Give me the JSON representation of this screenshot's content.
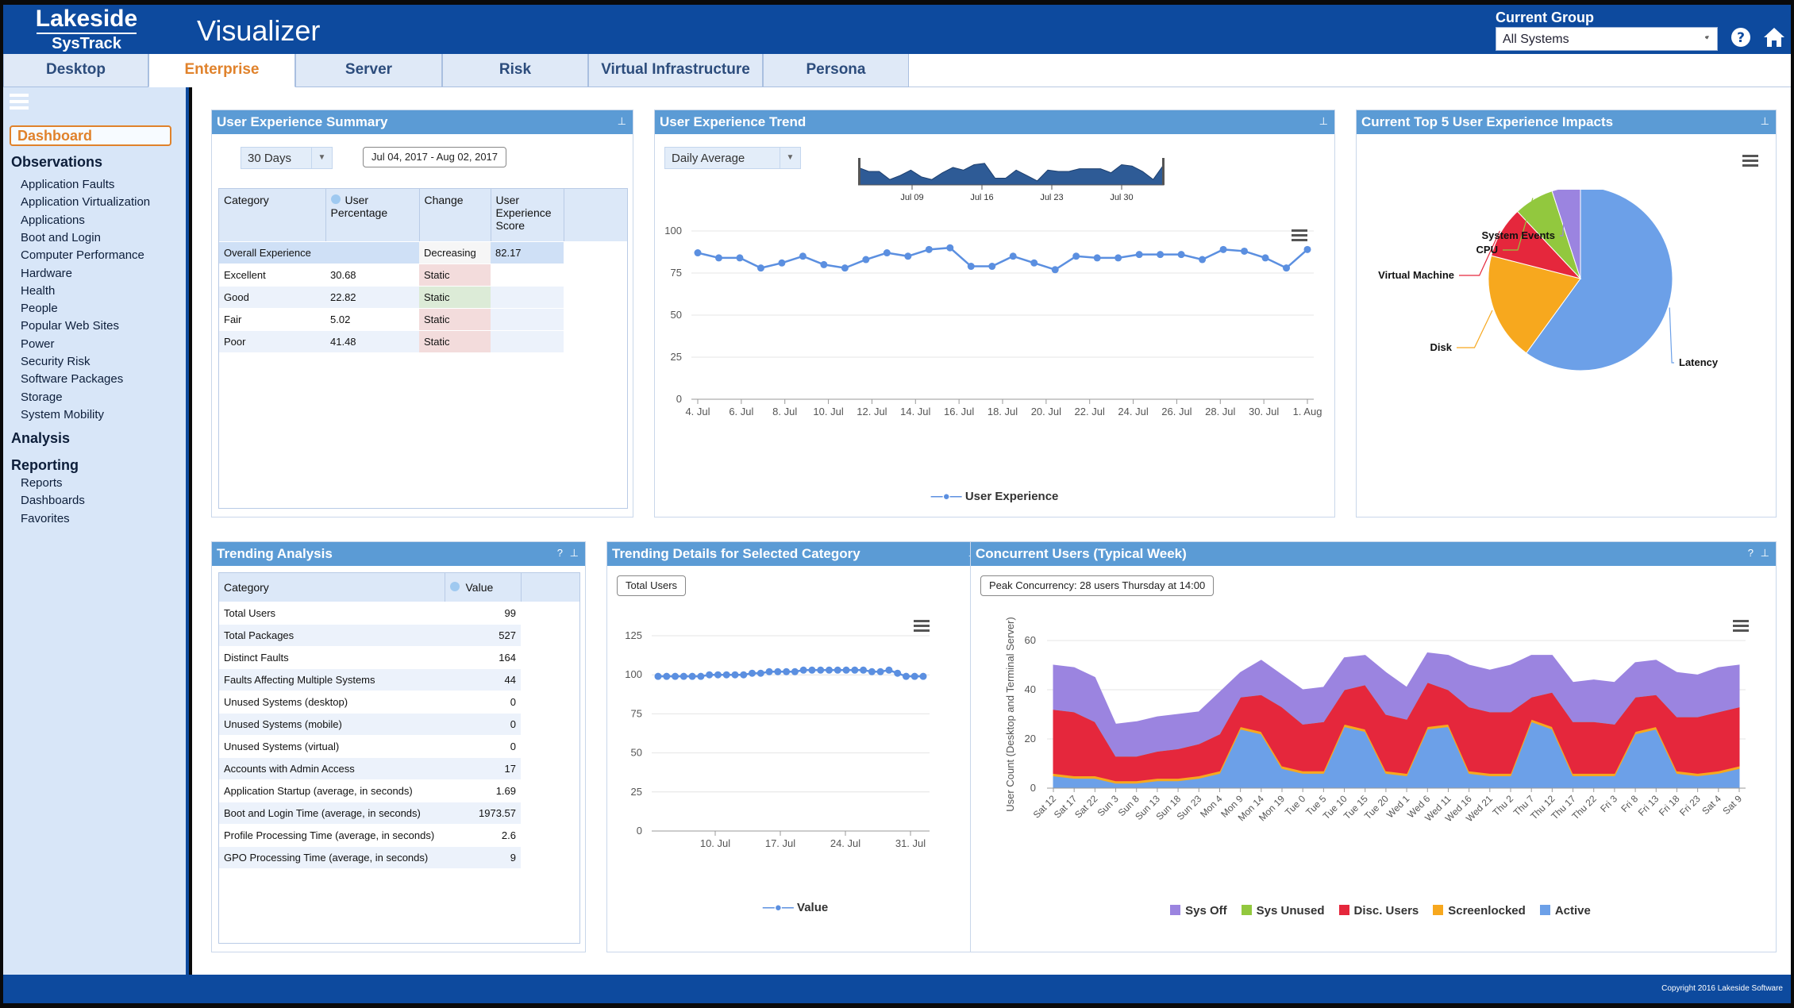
{
  "header": {
    "logo_top": "Lakeside",
    "logo_bottom": "SysTrack",
    "title": "Visualizer",
    "group_label": "Current Group",
    "group_value": "All Systems"
  },
  "tabs": [
    "Desktop",
    "Enterprise",
    "Server",
    "Risk",
    "Virtual Infrastructure",
    "Persona"
  ],
  "sidebar": {
    "dashboard": "Dashboard",
    "observations": "Observations",
    "observation_items": [
      "Application Faults",
      "Application Virtualization",
      "Applications",
      "Boot and Login",
      "Computer Performance",
      "Hardware",
      "Health",
      "People",
      "Popular Web Sites",
      "Power",
      "Security Risk",
      "Software Packages",
      "Storage",
      "System Mobility"
    ],
    "analysis": "Analysis",
    "reporting": "Reporting",
    "reporting_items": [
      "Reports",
      "Dashboards",
      "Favorites"
    ]
  },
  "ux_summary": {
    "title": "User Experience Summary",
    "period": "30 Days",
    "date_range": "Jul 04, 2017 - Aug 02, 2017",
    "headers": [
      "Category",
      "User Percentage",
      "Change",
      "User Experience Score"
    ],
    "rows": [
      [
        "Overall Experience",
        "",
        "Decreasing",
        "82.17"
      ],
      [
        "Excellent",
        "30.68",
        "Static",
        ""
      ],
      [
        "Good",
        "22.82",
        "Static",
        ""
      ],
      [
        "Fair",
        "5.02",
        "Static",
        ""
      ],
      [
        "Poor",
        "41.48",
        "Static",
        ""
      ]
    ]
  },
  "ux_trend": {
    "title": "User Experience Trend",
    "mode": "Daily Average",
    "navigator_labels": [
      "Jul 09",
      "Jul 16",
      "Jul 23",
      "Jul 30"
    ],
    "chart_data": {
      "type": "line",
      "title": "",
      "xlabel": "",
      "ylabel": "",
      "ylim": [
        0,
        100
      ],
      "yticks": [
        0,
        25,
        50,
        75,
        100
      ],
      "xticks": [
        "4. Jul",
        "6. Jul",
        "8. Jul",
        "10. Jul",
        "12. Jul",
        "14. Jul",
        "16. Jul",
        "18. Jul",
        "20. Jul",
        "22. Jul",
        "24. Jul",
        "26. Jul",
        "28. Jul",
        "30. Jul",
        "1. Aug"
      ],
      "series": [
        {
          "name": "User Experience",
          "values": [
            87,
            84,
            84,
            78,
            81,
            85,
            80,
            78,
            83,
            87,
            85,
            89,
            90,
            79,
            79,
            85,
            81,
            77,
            85,
            84,
            84,
            86,
            86,
            86,
            83,
            89,
            88,
            84,
            78,
            89
          ]
        }
      ]
    }
  },
  "top5": {
    "title": "Current Top 5 User Experience Impacts",
    "chart_data": {
      "type": "pie",
      "title": "",
      "categories": [
        "Latency",
        "Disk",
        "Virtual Machine",
        "CPU",
        "System Events"
      ],
      "values": [
        60,
        19,
        9,
        7,
        5
      ],
      "colors": [
        "#6ca0e8",
        "#f7a81e",
        "#e5273c",
        "#92c83e",
        "#9b84e0"
      ]
    }
  },
  "trending": {
    "title": "Trending Analysis",
    "headers": [
      "Category",
      "Value"
    ],
    "rows": [
      [
        "Total Users",
        "99"
      ],
      [
        "Total Packages",
        "527"
      ],
      [
        "Distinct Faults",
        "164"
      ],
      [
        "Faults Affecting Multiple Systems",
        "44"
      ],
      [
        "Unused Systems (desktop)",
        "0"
      ],
      [
        "Unused Systems (mobile)",
        "0"
      ],
      [
        "Unused Systems (virtual)",
        "0"
      ],
      [
        "Accounts with Admin Access",
        "17"
      ],
      [
        "Application Startup (average, in seconds)",
        "1.69"
      ],
      [
        "Boot and Login Time (average, in seconds)",
        "1973.57"
      ],
      [
        "Profile Processing Time (average, in seconds)",
        "2.6"
      ],
      [
        "GPO Processing Time (average, in seconds)",
        "9"
      ]
    ]
  },
  "details": {
    "title": "Trending Details for Selected Category",
    "selected": "Total Users",
    "chart_data": {
      "type": "line",
      "title": "",
      "xlabel": "",
      "ylabel": "",
      "ylim": [
        0,
        125
      ],
      "yticks": [
        0,
        25,
        50,
        75,
        100,
        125
      ],
      "xticks": [
        "10. Jul",
        "17. Jul",
        "24. Jul",
        "31. Jul"
      ],
      "series": [
        {
          "name": "Value",
          "values": [
            99,
            99,
            99,
            99,
            99,
            99,
            100,
            100,
            100,
            100,
            100,
            101,
            101,
            102,
            102,
            102,
            102,
            103,
            103,
            103,
            103,
            103,
            103,
            103,
            103,
            102,
            102,
            103,
            101,
            99,
            99,
            99
          ]
        }
      ]
    }
  },
  "concurrent": {
    "title": "Concurrent Users (Typical Week)",
    "peak": "Peak Concurrency: 28 users Thursday at 14:00",
    "chart_data": {
      "type": "area",
      "title": "",
      "xlabel": "",
      "ylabel": "User Count (Desktop and Terminal Server)",
      "ylim": [
        0,
        60
      ],
      "yticks": [
        0,
        20,
        40,
        60
      ],
      "stacked": true,
      "categories": [
        "Sat 12",
        "Sat 17",
        "Sat 22",
        "Sun 3",
        "Sun 8",
        "Sun 13",
        "Sun 18",
        "Sun 23",
        "Mon 4",
        "Mon 9",
        "Mon 14",
        "Mon 19",
        "Tue 0",
        "Tue 5",
        "Tue 10",
        "Tue 15",
        "Tue 20",
        "Wed 1",
        "Wed 6",
        "Wed 11",
        "Wed 16",
        "Wed 21",
        "Thu 2",
        "Thu 7",
        "Thu 12",
        "Thu 17",
        "Thu 22",
        "Fri 3",
        "Fri 8",
        "Fri 13",
        "Fri 18",
        "Fri 23",
        "Sat 4",
        "Sat 9"
      ],
      "series": [
        {
          "name": "Active",
          "color": "#6ca0e8",
          "values": [
            5,
            4,
            4,
            2,
            2,
            3,
            3,
            4,
            6,
            24,
            22,
            8,
            6,
            6,
            25,
            23,
            6,
            5,
            24,
            25,
            6,
            5,
            5,
            27,
            24,
            5,
            5,
            5,
            22,
            24,
            6,
            5,
            6,
            8
          ]
        },
        {
          "name": "Screenlocked",
          "color": "#f7a81e",
          "values": [
            1,
            1,
            1,
            1,
            1,
            1,
            1,
            1,
            1,
            1,
            1,
            1,
            1,
            1,
            1,
            1,
            1,
            1,
            1,
            1,
            1,
            1,
            1,
            1,
            1,
            1,
            1,
            1,
            1,
            1,
            1,
            1,
            1,
            1
          ]
        },
        {
          "name": "Disc. Users",
          "color": "#e5273c",
          "values": [
            26,
            26,
            22,
            10,
            10,
            11,
            12,
            13,
            15,
            12,
            15,
            24,
            19,
            20,
            14,
            18,
            23,
            22,
            18,
            14,
            26,
            25,
            25,
            9,
            14,
            21,
            21,
            20,
            14,
            13,
            22,
            23,
            24,
            24
          ]
        },
        {
          "name": "Sys Unused",
          "color": "#92c83e",
          "values": [
            0,
            0,
            0,
            0,
            0,
            0,
            0,
            0,
            0,
            0,
            0,
            0,
            0,
            0,
            0,
            0,
            0,
            0,
            0,
            0,
            0,
            0,
            0,
            0,
            0,
            0,
            0,
            0,
            0,
            0,
            0,
            0,
            0,
            0
          ]
        },
        {
          "name": "Sys Off",
          "color": "#9b84e0",
          "values": [
            18,
            18,
            18,
            13,
            14,
            14,
            14,
            13,
            17,
            10,
            14,
            13,
            14,
            14,
            13,
            12,
            17,
            13,
            12,
            14,
            17,
            17,
            19,
            17,
            15,
            16,
            17,
            17,
            14,
            14,
            18,
            17,
            18,
            17
          ]
        }
      ],
      "legend_order": [
        "Sys Off",
        "Sys Unused",
        "Disc. Users",
        "Screenlocked",
        "Active"
      ]
    }
  },
  "footer": {
    "copyright": "Copyright 2016 Lakeside Software"
  }
}
